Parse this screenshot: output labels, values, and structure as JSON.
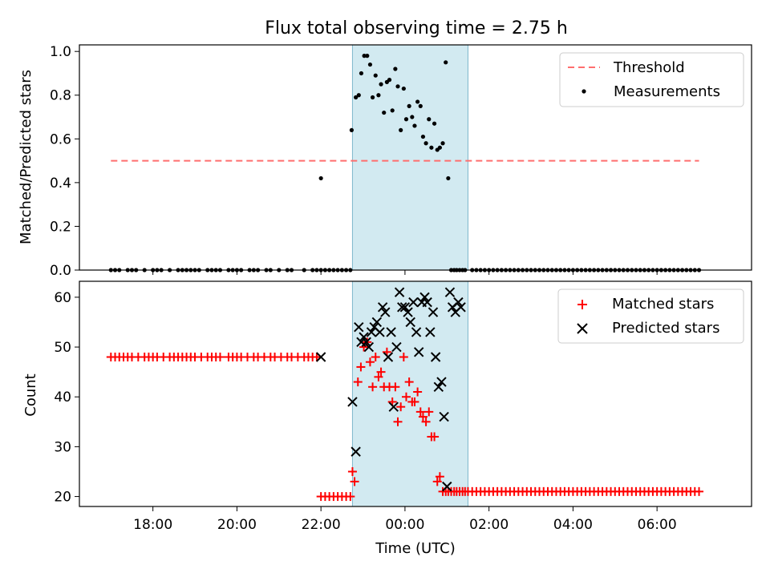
{
  "figure": {
    "title": "Flux total observing time = 2.75 h",
    "xlabel": "Time (UTC)"
  },
  "colors": {
    "threshold": "#ff6e6e",
    "measurements": "#000000",
    "matched": "#ff0000",
    "predicted": "#000000",
    "span": "#add8e6"
  },
  "chart_data": [
    {
      "type": "scatter",
      "title": "Flux total observing time = 2.75 h",
      "xlabel": "",
      "ylabel": "Matched/Predicted stars",
      "x_unit": "hours after 00:00 UTC",
      "xlim": [
        -7.75,
        8.25
      ],
      "ylim": [
        0.0,
        1.03
      ],
      "yticks": [
        0.0,
        0.2,
        0.4,
        0.6,
        0.8,
        1.0
      ],
      "yticklabels": [
        "0.0",
        "0.2",
        "0.4",
        "0.6",
        "0.8",
        "1.0"
      ],
      "xticks": [
        -6,
        -4,
        -2,
        0,
        2,
        4,
        6
      ],
      "highlight_span": [
        -1.25,
        1.5
      ],
      "legend": {
        "position": "upper-right",
        "entries": [
          "Threshold",
          "Measurements"
        ]
      },
      "series": [
        {
          "name": "Threshold",
          "kind": "dashed-line",
          "x": [
            -7,
            7
          ],
          "y": [
            0.5,
            0.5
          ]
        },
        {
          "name": "Measurements",
          "kind": "dot",
          "x": [
            -1.27,
            -1.17,
            -1.1,
            -1.04,
            -0.97,
            -0.9,
            -0.83,
            -0.77,
            -0.7,
            -0.63,
            -0.57,
            -0.5,
            -0.43,
            -0.37,
            -0.3,
            -0.23,
            -0.17,
            -0.1,
            -0.03,
            0.03,
            0.1,
            0.17,
            0.23,
            0.3,
            0.37,
            0.43,
            0.5,
            0.57,
            0.63,
            0.7,
            0.77,
            0.83,
            0.9,
            0.97,
            1.03,
            1.1,
            1.17,
            1.23,
            1.3,
            1.37,
            1.43,
            -2.0
          ],
          "y": [
            0.64,
            0.79,
            0.8,
            0.9,
            0.98,
            0.98,
            0.94,
            0.79,
            0.89,
            0.8,
            0.85,
            0.72,
            0.86,
            0.87,
            0.73,
            0.92,
            0.84,
            0.64,
            0.83,
            0.69,
            0.75,
            0.7,
            0.66,
            0.77,
            0.75,
            0.61,
            0.58,
            0.69,
            0.56,
            0.67,
            0.55,
            0.56,
            0.58,
            0.95,
            0.42,
            0.0,
            0.0,
            0.0,
            0.0,
            0.0,
            0.0,
            0.42
          ]
        },
        {
          "name": "Measurements (zero)",
          "kind": "dot",
          "x": [
            -7.0,
            -6.9,
            -6.8,
            -6.6,
            -6.5,
            -6.4,
            -6.2,
            -6.0,
            -5.9,
            -5.8,
            -5.6,
            -5.4,
            -5.3,
            -5.2,
            -5.1,
            -5.0,
            -4.9,
            -4.7,
            -4.6,
            -4.5,
            -4.4,
            -4.2,
            -4.1,
            -4.0,
            -3.9,
            -3.7,
            -3.6,
            -3.5,
            -3.3,
            -3.2,
            -3.0,
            -2.8,
            -2.7,
            -2.4,
            -2.2,
            -2.1,
            -2.0,
            -1.9,
            -1.8,
            -1.7,
            -1.6,
            -1.5,
            -1.4,
            -1.3,
            1.6,
            1.7,
            1.8,
            1.9,
            2.0,
            2.1,
            2.2,
            2.3,
            2.4,
            2.5,
            2.6,
            2.7,
            2.8,
            2.9,
            3.0,
            3.1,
            3.2,
            3.3,
            3.4,
            3.5,
            3.6,
            3.7,
            3.8,
            3.9,
            4.0,
            4.1,
            4.2,
            4.3,
            4.4,
            4.5,
            4.6,
            4.7,
            4.8,
            4.9,
            5.0,
            5.1,
            5.2,
            5.3,
            5.4,
            5.5,
            5.6,
            5.7,
            5.8,
            5.9,
            6.0,
            6.1,
            6.2,
            6.3,
            6.4,
            6.5,
            6.6,
            6.7,
            6.8,
            6.9,
            7.0
          ],
          "y": [
            0,
            0,
            0,
            0,
            0,
            0,
            0,
            0,
            0,
            0,
            0,
            0,
            0,
            0,
            0,
            0,
            0,
            0,
            0,
            0,
            0,
            0,
            0,
            0,
            0,
            0,
            0,
            0,
            0,
            0,
            0,
            0,
            0,
            0,
            0,
            0,
            0,
            0,
            0,
            0,
            0,
            0,
            0,
            0,
            0,
            0,
            0,
            0,
            0,
            0,
            0,
            0,
            0,
            0,
            0,
            0,
            0,
            0,
            0,
            0,
            0,
            0,
            0,
            0,
            0,
            0,
            0,
            0,
            0,
            0,
            0,
            0,
            0,
            0,
            0,
            0,
            0,
            0,
            0,
            0,
            0,
            0,
            0,
            0,
            0,
            0,
            0,
            0,
            0,
            0,
            0,
            0,
            0,
            0,
            0,
            0,
            0,
            0,
            0
          ]
        }
      ]
    },
    {
      "type": "scatter",
      "title": "",
      "xlabel": "Time (UTC)",
      "ylabel": "Count",
      "x_unit": "hours after 00:00 UTC",
      "xlim": [
        -7.75,
        8.25
      ],
      "ylim": [
        18,
        63.2
      ],
      "yticks": [
        20,
        30,
        40,
        50,
        60
      ],
      "yticklabels": [
        "20",
        "30",
        "40",
        "50",
        "60"
      ],
      "xticks": [
        -6,
        -4,
        -2,
        0,
        2,
        4,
        6
      ],
      "xticklabels": [
        "18:00",
        "20:00",
        "22:00",
        "00:00",
        "02:00",
        "04:00",
        "06:00"
      ],
      "highlight_span": [
        -1.25,
        1.5
      ],
      "legend": {
        "position": "upper-right",
        "entries": [
          "Matched stars",
          "Predicted stars"
        ]
      },
      "series": [
        {
          "name": "Matched stars",
          "kind": "plus",
          "x": [
            -7.0,
            -6.9,
            -6.8,
            -6.7,
            -6.6,
            -6.5,
            -6.35,
            -6.2,
            -6.1,
            -6.0,
            -5.9,
            -5.75,
            -5.6,
            -5.5,
            -5.4,
            -5.3,
            -5.2,
            -5.1,
            -5.0,
            -4.85,
            -4.7,
            -4.6,
            -4.5,
            -4.4,
            -4.2,
            -4.1,
            -4.0,
            -3.9,
            -3.75,
            -3.6,
            -3.5,
            -3.35,
            -3.2,
            -3.1,
            -2.95,
            -2.8,
            -2.7,
            -2.55,
            -2.4,
            -2.3,
            -2.2,
            -2.1,
            -2.0,
            -1.9,
            -1.8,
            -1.7,
            -1.6,
            -1.5,
            -1.4,
            -1.3,
            -1.25,
            -1.2,
            -1.12,
            -1.05,
            -0.98,
            -0.9,
            -0.83,
            -0.77,
            -0.7,
            -0.63,
            -0.57,
            -0.5,
            -0.43,
            -0.37,
            -0.3,
            -0.23,
            -0.17,
            -0.1,
            -0.03,
            0.03,
            0.1,
            0.17,
            0.23,
            0.3,
            0.37,
            0.43,
            0.5,
            0.57,
            0.63,
            0.7,
            0.77,
            0.83,
            0.9,
            0.97,
            1.03,
            1.1,
            1.17,
            1.23,
            1.3,
            1.37,
            1.43,
            1.5,
            1.6,
            1.7,
            1.8,
            1.9,
            2.0,
            2.1,
            2.2,
            2.3,
            2.4,
            2.5,
            2.6,
            2.7,
            2.8,
            2.9,
            3.0,
            3.1,
            3.2,
            3.3,
            3.4,
            3.5,
            3.6,
            3.7,
            3.8,
            3.9,
            4.0,
            4.1,
            4.2,
            4.3,
            4.4,
            4.5,
            4.6,
            4.7,
            4.8,
            4.9,
            5.0,
            5.1,
            5.2,
            5.3,
            5.4,
            5.5,
            5.6,
            5.7,
            5.8,
            5.9,
            6.0,
            6.1,
            6.2,
            6.3,
            6.4,
            6.5,
            6.6,
            6.7,
            6.8,
            6.9,
            7.0
          ],
          "y": [
            48,
            48,
            48,
            48,
            48,
            48,
            48,
            48,
            48,
            48,
            48,
            48,
            48,
            48,
            48,
            48,
            48,
            48,
            48,
            48,
            48,
            48,
            48,
            48,
            48,
            48,
            48,
            48,
            48,
            48,
            48,
            48,
            48,
            48,
            48,
            48,
            48,
            48,
            48,
            48,
            48,
            48,
            20,
            20,
            20,
            20,
            20,
            20,
            20,
            20,
            25,
            23,
            43,
            46,
            50,
            51,
            47,
            42,
            48,
            44,
            45,
            42,
            49,
            42,
            39,
            42,
            35,
            38,
            48,
            40,
            43,
            39,
            39,
            41,
            37,
            36,
            35,
            37,
            32,
            32,
            23,
            24,
            21,
            21,
            21,
            21,
            21,
            21,
            21,
            21,
            21,
            21,
            21,
            21,
            21,
            21,
            21,
            21,
            21,
            21,
            21,
            21,
            21,
            21,
            21,
            21,
            21,
            21,
            21,
            21,
            21,
            21,
            21,
            21,
            21,
            21,
            21,
            21,
            21,
            21,
            21,
            21,
            21,
            21,
            21,
            21,
            21,
            21,
            21,
            21,
            21,
            21,
            21,
            21,
            21,
            21,
            21,
            21,
            21,
            21,
            21,
            21,
            21,
            21,
            21,
            21,
            21
          ]
        },
        {
          "name": "Predicted stars",
          "kind": "cross",
          "x": [
            -2.0,
            -1.25,
            -1.17,
            -1.1,
            -1.04,
            -0.98,
            -0.92,
            -0.86,
            -0.8,
            -0.73,
            -0.67,
            -0.6,
            -0.53,
            -0.47,
            -0.4,
            -0.33,
            -0.27,
            -0.2,
            -0.13,
            -0.07,
            0.0,
            0.07,
            0.13,
            0.2,
            0.27,
            0.33,
            0.4,
            0.47,
            0.53,
            0.6,
            0.67,
            0.73,
            0.8,
            0.87,
            0.93,
            1.0,
            1.07,
            1.13,
            1.2,
            1.27,
            1.33
          ],
          "y": [
            48,
            39,
            29,
            54,
            51,
            52,
            51,
            50,
            53,
            54,
            55,
            53,
            58,
            57,
            48,
            53,
            38,
            50,
            61,
            58,
            58,
            57,
            55,
            59,
            53,
            49,
            59,
            60,
            59,
            53,
            57,
            48,
            42,
            43,
            36,
            22,
            61,
            58,
            57,
            59,
            58
          ]
        }
      ]
    }
  ]
}
